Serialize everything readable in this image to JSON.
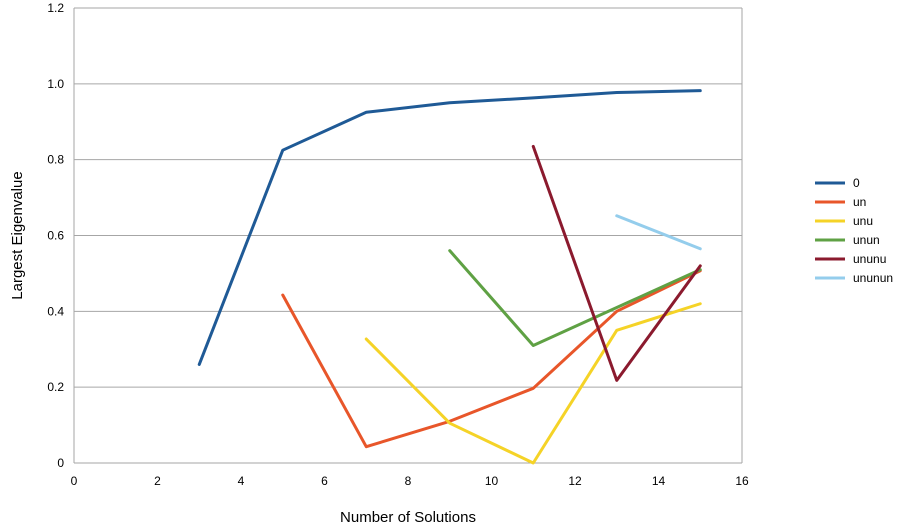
{
  "chart_data": {
    "type": "line",
    "title": "",
    "xlabel": "Number of Solutions",
    "ylabel": "Largest Eigenvalue",
    "xlim": [
      0,
      16
    ],
    "ylim": [
      0,
      1.2
    ],
    "x_ticks": [
      "0",
      "2",
      "4",
      "6",
      "8",
      "10",
      "12",
      "14",
      "16"
    ],
    "y_ticks": [
      "0",
      "0.2",
      "0.4",
      "0.6",
      "0.8",
      "1.0",
      "1.2"
    ],
    "grid": "horizontal",
    "legend_position": "right",
    "series": [
      {
        "name": "0",
        "color": "#1f5a96",
        "points": [
          [
            3,
            0.26
          ],
          [
            5,
            0.825
          ],
          [
            7,
            0.925
          ],
          [
            9,
            0.95
          ],
          [
            11,
            0.963
          ],
          [
            13,
            0.977
          ],
          [
            15,
            0.982
          ]
        ]
      },
      {
        "name": "un",
        "color": "#e8562a",
        "points": [
          [
            5,
            0.443
          ],
          [
            7,
            0.043
          ],
          [
            9,
            0.11
          ],
          [
            11,
            0.197
          ],
          [
            13,
            0.4
          ],
          [
            15,
            0.507
          ]
        ]
      },
      {
        "name": "unu",
        "color": "#f5d327",
        "points": [
          [
            7,
            0.327
          ],
          [
            9,
            0.105
          ],
          [
            11,
            0.0
          ],
          [
            13,
            0.35
          ],
          [
            15,
            0.42
          ]
        ]
      },
      {
        "name": "unun",
        "color": "#5fa144",
        "points": [
          [
            9,
            0.56
          ],
          [
            11,
            0.31
          ],
          [
            13,
            0.41
          ],
          [
            15,
            0.51
          ]
        ]
      },
      {
        "name": "ununu",
        "color": "#8b1a2e",
        "points": [
          [
            11,
            0.835
          ],
          [
            13,
            0.218
          ],
          [
            15,
            0.52
          ]
        ]
      },
      {
        "name": "ununun",
        "color": "#94cdec",
        "points": [
          [
            13,
            0.652
          ],
          [
            15,
            0.565
          ]
        ]
      }
    ]
  }
}
